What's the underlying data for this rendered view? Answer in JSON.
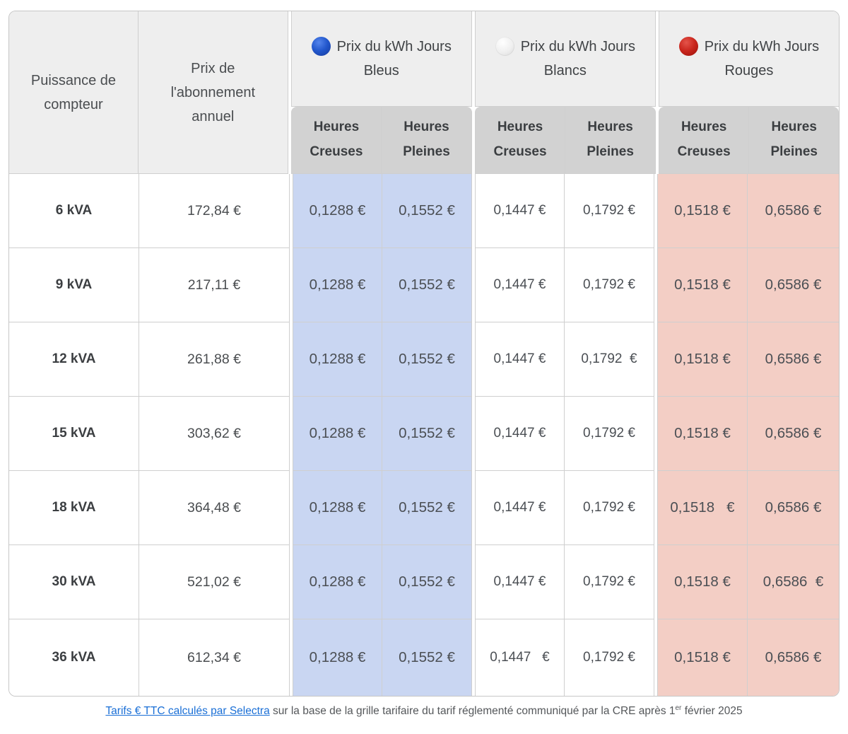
{
  "table": {
    "header": {
      "power_label": "Puissance de compteur",
      "subscription_label": "Prix de l'abonnement annuel",
      "groups": [
        {
          "icon": "blue-circle-icon",
          "label": "Prix du kWh Jours Bleus",
          "sub": [
            "Heures Creuses",
            "Heures Pleines"
          ]
        },
        {
          "icon": "white-circle-icon",
          "label": "Prix du kWh Jours Blancs",
          "sub": [
            "Heures Creuses",
            "Heures Pleines"
          ]
        },
        {
          "icon": "red-circle-icon",
          "label": "Prix du kWh Jours Rouges",
          "sub": [
            "Heures Creuses",
            "Heures Pleines"
          ]
        }
      ]
    },
    "rows": [
      {
        "power": "6 kVA",
        "subscription": "172,84 €",
        "values": [
          "0,1288 €",
          "0,1552 €",
          "0,1447 €",
          "0,1792 €",
          "0,1518 €",
          "0,6586 €"
        ]
      },
      {
        "power": "9 kVA",
        "subscription": "217,11 €",
        "values": [
          "0,1288 €",
          "0,1552 €",
          "0,1447 €",
          "0,1792 €",
          "0,1518 €",
          "0,6586 €"
        ]
      },
      {
        "power": "12 kVA",
        "subscription": "261,88 €",
        "values": [
          "0,1288 €",
          "0,1552 €",
          "0,1447 €",
          "0,1792  €",
          "0,1518 €",
          "0,6586 €"
        ]
      },
      {
        "power": "15 kVA",
        "subscription": "303,62 €",
        "values": [
          "0,1288 €",
          "0,1552 €",
          "0,1447 €",
          "0,1792 €",
          "0,1518 €",
          "0,6586 €"
        ]
      },
      {
        "power": "18 kVA",
        "subscription": "364,48 €",
        "values": [
          "0,1288 €",
          "0,1552 €",
          "0,1447 €",
          "0,1792 €",
          "0,1518   €",
          "0,6586 €"
        ]
      },
      {
        "power": "30 kVA",
        "subscription": "521,02 €",
        "values": [
          "0,1288 €",
          "0,1552 €",
          "0,1447 €",
          "0,1792 €",
          "0,1518 €",
          "0,6586  €"
        ]
      },
      {
        "power": "36 kVA",
        "subscription": "612,34 €",
        "values": [
          "0,1288 €",
          "0,1552 €",
          "0,1447   €",
          "0,1792 €",
          "0,1518 €",
          "0,6586 €"
        ]
      }
    ]
  },
  "footer": {
    "link_label": "Tarifs € TTC calculés par Selectra",
    "text_before_sup": "sur la base de la grille tarifaire du tarif réglementé communiqué par la CRE après 1",
    "sup": "er",
    "text_after_sup": " février 2025"
  },
  "colors": {
    "blue_day": "#2257cc",
    "white_day": "#efefef",
    "red_day": "#c9261d",
    "blue_cell_bg": "#c9d6f2",
    "red_cell_bg": "#f3cec5",
    "header_bg": "#eeeeee",
    "subheader_bg": "#d2d2d2",
    "border": "#cfcfcf",
    "link": "#1a6fd6"
  }
}
